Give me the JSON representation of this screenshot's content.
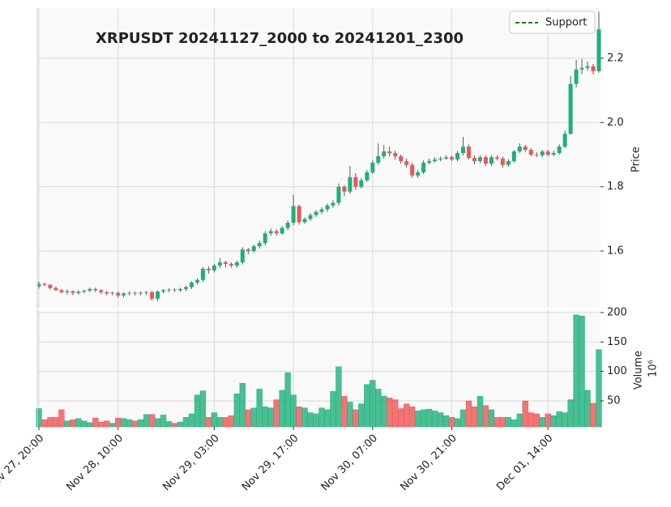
{
  "chart_data": {
    "type": "candlestick",
    "title": "XRPUSDT 20241127_2000 to 20241201_2300",
    "y_label": "Price",
    "volume_label": "Volume",
    "volume_unit": "10⁶",
    "legend": {
      "label": "Support",
      "color": "#008000",
      "style": "dashed",
      "loc": "upper right"
    },
    "up_color": "#1db07a",
    "down_color": "#f05454",
    "grid": true,
    "categories": [
      "Nov 27, 20:00",
      null,
      null,
      null,
      null,
      null,
      null,
      null,
      null,
      null,
      null,
      null,
      null,
      null,
      "Nov 28, 10:00",
      null,
      null,
      null,
      null,
      null,
      null,
      null,
      null,
      null,
      null,
      null,
      null,
      null,
      null,
      null,
      null,
      "Nov 29, 03:00",
      null,
      null,
      null,
      null,
      null,
      null,
      null,
      null,
      null,
      null,
      null,
      null,
      null,
      "Nov 29, 17:00",
      null,
      null,
      null,
      null,
      null,
      null,
      null,
      null,
      null,
      null,
      null,
      null,
      null,
      "Nov 30, 07:00",
      null,
      null,
      null,
      null,
      null,
      null,
      null,
      null,
      null,
      null,
      null,
      null,
      null,
      "Nov 30, 21:00",
      null,
      null,
      null,
      null,
      null,
      null,
      null,
      null,
      null,
      null,
      null,
      null,
      null,
      null,
      null,
      null,
      "Dec 01, 14:00",
      null,
      null,
      null,
      null,
      null,
      null,
      null,
      null,
      null
    ],
    "open": [
      1.49,
      1.498,
      1.495,
      1.485,
      1.478,
      1.472,
      1.475,
      1.47,
      1.474,
      1.477,
      1.482,
      1.478,
      1.472,
      1.468,
      1.47,
      1.462,
      1.468,
      1.47,
      1.468,
      1.47,
      1.472,
      1.452,
      1.474,
      1.478,
      1.48,
      1.478,
      1.482,
      1.488,
      1.502,
      1.51,
      1.545,
      1.54,
      1.555,
      1.565,
      1.56,
      1.555,
      1.565,
      1.605,
      1.6,
      1.615,
      1.625,
      1.655,
      1.662,
      1.655,
      1.672,
      1.688,
      1.74,
      1.69,
      1.7,
      1.712,
      1.722,
      1.73,
      1.742,
      1.75,
      1.8,
      1.785,
      1.83,
      1.8,
      1.82,
      1.845,
      1.875,
      1.895,
      1.91,
      1.905,
      1.895,
      1.88,
      1.868,
      1.835,
      1.845,
      1.875,
      1.88,
      1.885,
      1.888,
      1.892,
      1.885,
      1.905,
      1.925,
      1.89,
      1.88,
      1.892,
      1.872,
      1.892,
      1.888,
      1.868,
      1.88,
      1.91,
      1.925,
      1.915,
      1.9,
      1.898,
      1.91,
      1.9,
      1.905,
      1.925,
      1.965,
      2.12,
      2.165,
      2.17,
      2.175,
      2.16
    ],
    "high": [
      1.505,
      1.502,
      1.498,
      1.49,
      1.482,
      1.48,
      1.478,
      1.478,
      1.48,
      1.486,
      1.486,
      1.482,
      1.476,
      1.474,
      1.474,
      1.472,
      1.474,
      1.474,
      1.474,
      1.476,
      1.476,
      1.478,
      1.482,
      1.484,
      1.484,
      1.486,
      1.492,
      1.506,
      1.515,
      1.55,
      1.552,
      1.56,
      1.578,
      1.57,
      1.565,
      1.57,
      1.612,
      1.61,
      1.62,
      1.632,
      1.662,
      1.67,
      1.668,
      1.678,
      1.695,
      1.775,
      1.745,
      1.705,
      1.718,
      1.728,
      1.736,
      1.748,
      1.758,
      1.81,
      1.805,
      1.865,
      1.842,
      1.828,
      1.852,
      1.882,
      1.935,
      1.93,
      1.925,
      1.912,
      1.9,
      1.888,
      1.875,
      1.852,
      1.882,
      1.888,
      1.892,
      1.894,
      1.898,
      1.898,
      1.912,
      1.955,
      1.932,
      1.898,
      1.898,
      1.898,
      1.898,
      1.898,
      1.894,
      1.886,
      1.915,
      1.935,
      1.93,
      1.92,
      1.908,
      1.915,
      1.915,
      1.912,
      1.932,
      1.975,
      2.145,
      2.195,
      2.198,
      2.19,
      2.182,
      2.345
    ],
    "low": [
      1.483,
      1.49,
      1.48,
      1.478,
      1.468,
      1.465,
      1.463,
      1.464,
      1.468,
      1.472,
      1.472,
      1.466,
      1.462,
      1.462,
      1.455,
      1.456,
      1.462,
      1.462,
      1.462,
      1.464,
      1.446,
      1.445,
      1.468,
      1.472,
      1.472,
      1.472,
      1.476,
      1.482,
      1.496,
      1.504,
      1.53,
      1.534,
      1.548,
      1.55,
      1.548,
      1.548,
      1.558,
      1.59,
      1.595,
      1.608,
      1.618,
      1.648,
      1.648,
      1.65,
      1.665,
      1.68,
      1.682,
      1.685,
      1.694,
      1.706,
      1.715,
      1.722,
      1.735,
      1.742,
      1.77,
      1.778,
      1.79,
      1.795,
      1.815,
      1.84,
      1.868,
      1.888,
      1.895,
      1.885,
      1.872,
      1.86,
      1.828,
      1.828,
      1.84,
      1.87,
      1.876,
      1.88,
      1.884,
      1.88,
      1.88,
      1.898,
      1.885,
      1.87,
      1.874,
      1.865,
      1.865,
      1.882,
      1.86,
      1.862,
      1.875,
      1.905,
      1.908,
      1.895,
      1.892,
      1.892,
      1.895,
      1.895,
      1.9,
      1.92,
      1.962,
      2.11,
      2.15,
      2.162,
      2.15,
      2.155
    ],
    "close": [
      1.498,
      1.495,
      1.485,
      1.478,
      1.472,
      1.475,
      1.47,
      1.474,
      1.477,
      1.482,
      1.478,
      1.472,
      1.468,
      1.47,
      1.462,
      1.468,
      1.47,
      1.468,
      1.47,
      1.472,
      1.452,
      1.474,
      1.478,
      1.48,
      1.478,
      1.482,
      1.488,
      1.502,
      1.51,
      1.545,
      1.54,
      1.555,
      1.565,
      1.56,
      1.555,
      1.565,
      1.605,
      1.6,
      1.615,
      1.625,
      1.655,
      1.662,
      1.655,
      1.672,
      1.688,
      1.74,
      1.69,
      1.7,
      1.712,
      1.722,
      1.73,
      1.742,
      1.75,
      1.8,
      1.785,
      1.83,
      1.8,
      1.82,
      1.845,
      1.875,
      1.895,
      1.91,
      1.905,
      1.895,
      1.88,
      1.868,
      1.835,
      1.845,
      1.875,
      1.88,
      1.885,
      1.888,
      1.892,
      1.885,
      1.905,
      1.925,
      1.89,
      1.88,
      1.892,
      1.872,
      1.892,
      1.888,
      1.868,
      1.88,
      1.91,
      1.925,
      1.915,
      1.9,
      1.898,
      1.91,
      1.9,
      1.905,
      1.925,
      1.965,
      2.12,
      2.165,
      2.17,
      2.175,
      2.16,
      2.29
    ],
    "volume": [
      37,
      18,
      22,
      22,
      35,
      16,
      18,
      20,
      16,
      13,
      21,
      14,
      16,
      12,
      21,
      20,
      18,
      16,
      18,
      27,
      27,
      20,
      26,
      15,
      12,
      14,
      22,
      28,
      60,
      67,
      22,
      30,
      22,
      22,
      25,
      62,
      80,
      35,
      38,
      70,
      40,
      38,
      52,
      68,
      98,
      60,
      40,
      38,
      30,
      28,
      38,
      35,
      66,
      108,
      58,
      48,
      35,
      45,
      78,
      85,
      70,
      58,
      55,
      52,
      37,
      45,
      40,
      33,
      35,
      36,
      33,
      30,
      25,
      22,
      20,
      35,
      50,
      40,
      58,
      42,
      35,
      22,
      22,
      22,
      18,
      28,
      50,
      30,
      28,
      22,
      28,
      25,
      32,
      30,
      52,
      196,
      194,
      68,
      46,
      137
    ],
    "ylim": [
      1.4236,
      2.356
    ],
    "yticks": [
      1.6,
      1.8,
      {
        "value": 2,
        "label": "2.0"
      },
      2.2
    ],
    "volume_ylim": [
      6,
      204
    ],
    "volume_yticks": [
      50,
      100,
      150,
      200
    ]
  }
}
